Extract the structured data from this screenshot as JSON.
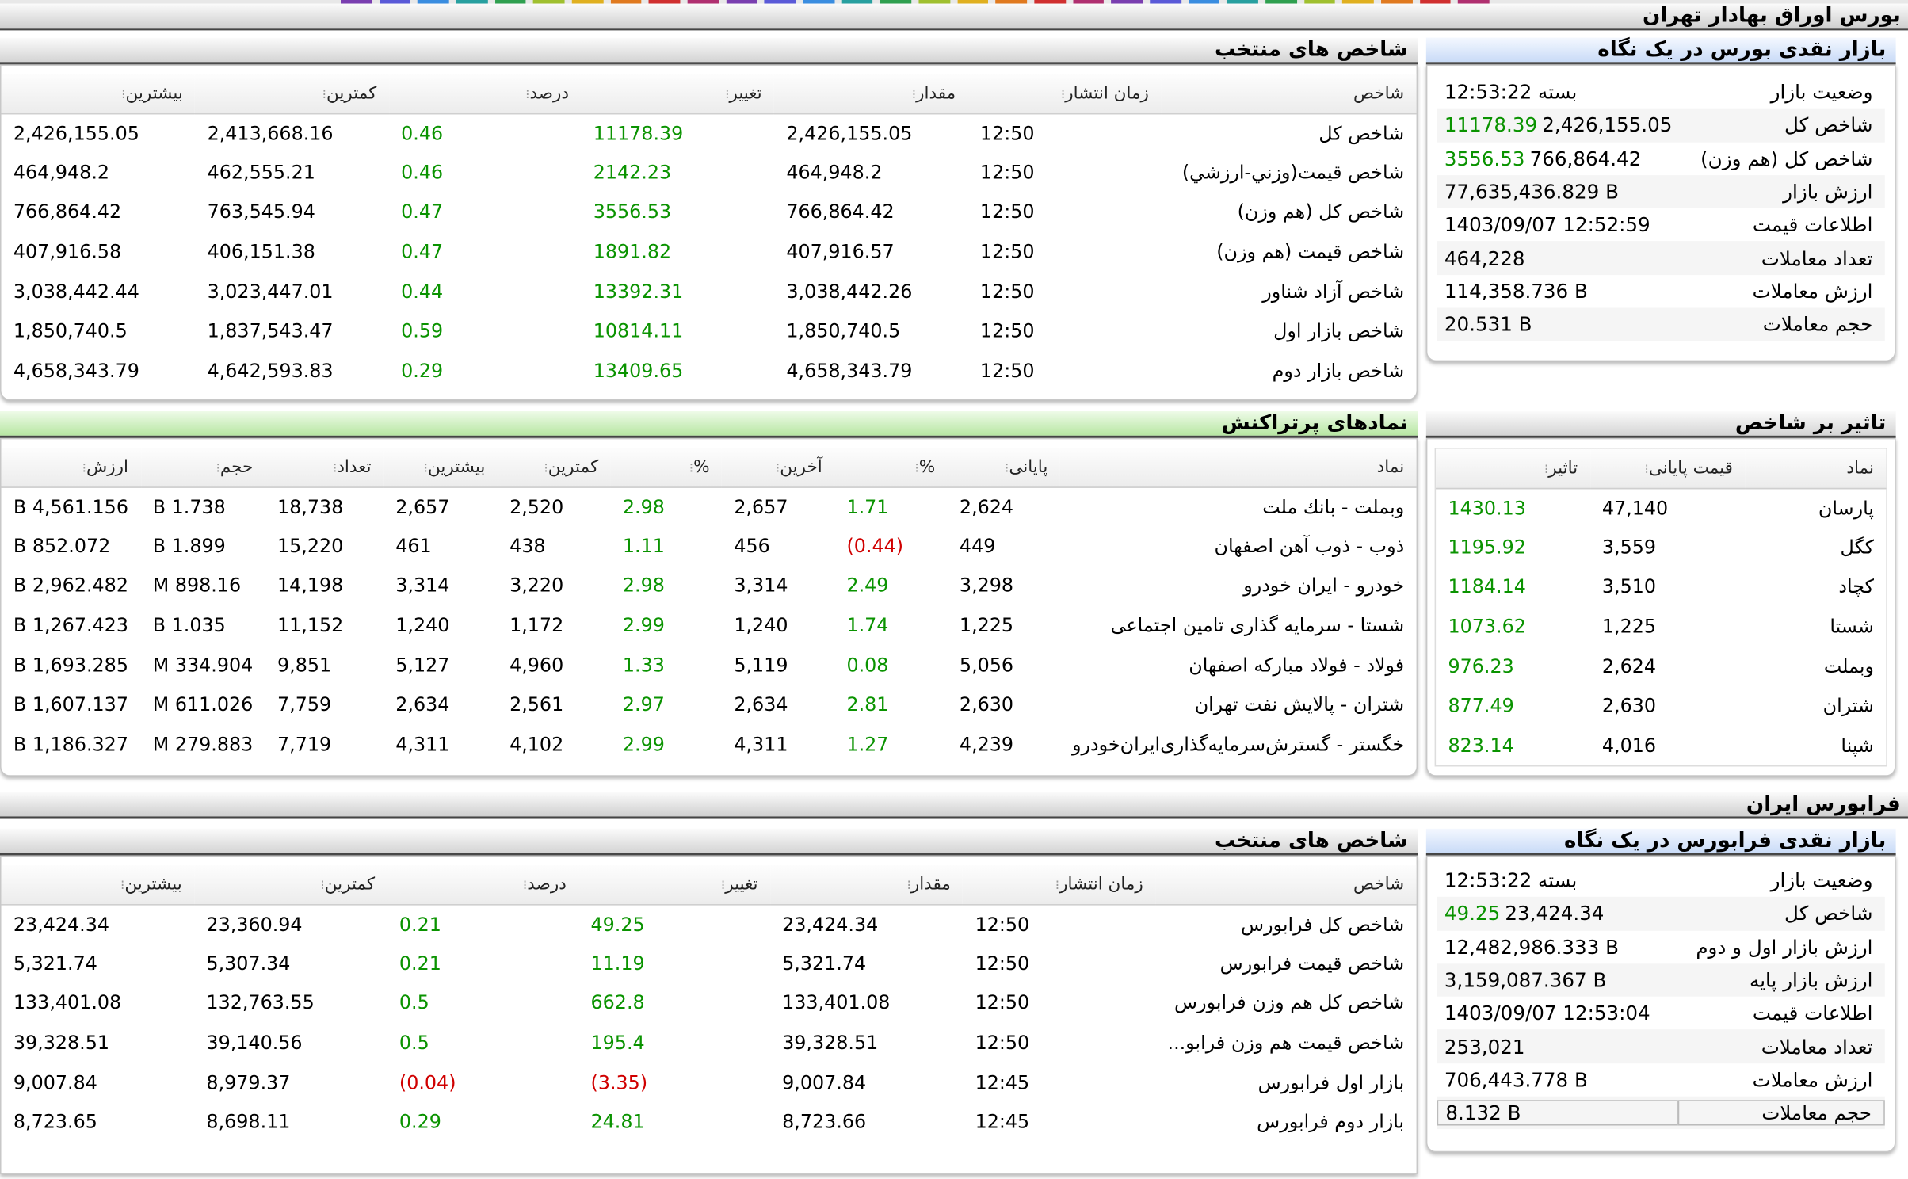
{
  "tse": {
    "title": "بورس اوراق بهادار تهران",
    "summary_title": "بازار نقدی بورس در یک نگاه",
    "summary": [
      {
        "k": "وضعیت بازار",
        "v": "بسته 12:53:22",
        "p": ""
      },
      {
        "k": "شاخص کل",
        "v": "2,426,155.05",
        "p": "11178.39"
      },
      {
        "k": "شاخص کل (هم وزن)",
        "v": "766,864.42",
        "p": "3556.53"
      },
      {
        "k": "ارزش بازار",
        "v": "77,635,436.829 B",
        "p": ""
      },
      {
        "k": "اطلاعات قیمت",
        "v": "1403/09/07 12:52:59",
        "p": ""
      },
      {
        "k": "تعداد معاملات",
        "v": "464,228",
        "p": ""
      },
      {
        "k": "ارزش معاملات",
        "v": "114,358.736 B",
        "p": ""
      },
      {
        "k": "حجم معاملات",
        "v": "20.531 B",
        "p": ""
      }
    ],
    "indices_title": "شاخص های منتخب",
    "indices_cols": [
      "شاخص",
      "زمان انتشار",
      "مقدار",
      "تغییر",
      "درصد",
      "کمترین",
      "بیشترین"
    ],
    "indices": [
      [
        "شاخص کل",
        "12:50",
        "2,426,155.05",
        "11178.39",
        "0.46",
        "2,413,668.16",
        "2,426,155.05"
      ],
      [
        "شاخص قيمت(وزني-ارزشي)",
        "12:50",
        "464,948.2",
        "2142.23",
        "0.46",
        "462,555.21",
        "464,948.2"
      ],
      [
        "شاخص کل (هم وزن)",
        "12:50",
        "766,864.42",
        "3556.53",
        "0.47",
        "763,545.94",
        "766,864.42"
      ],
      [
        "شاخص قیمت (هم وزن)",
        "12:50",
        "407,916.57",
        "1891.82",
        "0.47",
        "406,151.38",
        "407,916.58"
      ],
      [
        "شاخص آزاد شناور",
        "12:50",
        "3,038,442.26",
        "13392.31",
        "0.44",
        "3,023,447.01",
        "3,038,442.44"
      ],
      [
        "شاخص بازار اول",
        "12:50",
        "1,850,740.5",
        "10814.11",
        "0.59",
        "1,837,543.47",
        "1,850,740.5"
      ],
      [
        "شاخص بازار دوم",
        "12:50",
        "4,658,343.79",
        "13409.65",
        "0.29",
        "4,642,593.83",
        "4,658,343.79"
      ]
    ],
    "impact_title": "تاثیر بر شاخص",
    "impact_cols": [
      "نماد",
      "قیمت پایانی",
      "تاثیر"
    ],
    "impact": [
      [
        "پارسان",
        "47,140",
        "1430.13"
      ],
      [
        "کگل",
        "3,559",
        "1195.92"
      ],
      [
        "کچاد",
        "3,510",
        "1184.14"
      ],
      [
        "شستا",
        "1,225",
        "1073.62"
      ],
      [
        "وبملت",
        "2,624",
        "976.23"
      ],
      [
        "شتران",
        "2,630",
        "877.49"
      ],
      [
        "شپنا",
        "4,016",
        "823.14"
      ]
    ],
    "active_title": "نمادهای پرتراکنش",
    "active_cols": [
      "نماد",
      "پایانی",
      "%",
      "آخرین",
      "%",
      "کمترین",
      "بیشترین",
      "تعداد",
      "حجم",
      "ارزش"
    ],
    "active": [
      [
        "وبملت - بانك ملت",
        "2,624",
        "1.71",
        "2,657",
        "2.98",
        "2,520",
        "2,657",
        "18,738",
        "1.738 B",
        "4,561.156 B"
      ],
      [
        "ذوب - ذوب آهن  اصفهان",
        "449",
        "(0.44)",
        "456",
        "1.11",
        "438",
        "461",
        "15,220",
        "1.899 B",
        "852.072 B"
      ],
      [
        "خودرو - ایران‌ خودرو",
        "3,298",
        "2.49",
        "3,314",
        "2.98",
        "3,220",
        "3,314",
        "14,198",
        "898.16 M",
        "2,962.482 B"
      ],
      [
        "شستا - سرمایه گذاری تامین اجتماعی",
        "1,225",
        "1.74",
        "1,240",
        "2.99",
        "1,172",
        "1,240",
        "11,152",
        "1.035 B",
        "1,267.423 B"
      ],
      [
        "فولاد - فولاد مباركه اصفهان",
        "5,056",
        "0.08",
        "5,119",
        "1.33",
        "4,960",
        "5,127",
        "9,851",
        "334.904 M",
        "1,693.285 B"
      ],
      [
        "شتران - پالایش نفت تهران",
        "2,630",
        "2.81",
        "2,634",
        "2.97",
        "2,561",
        "2,634",
        "7,759",
        "611.026 M",
        "1,607.137 B"
      ],
      [
        "خگستر - گسترش‌سرمایه‌گذاری‌ایران‌خودرو",
        "4,239",
        "1.27",
        "4,311",
        "2.99",
        "4,102",
        "4,311",
        "7,719",
        "279.883 M",
        "1,186.327 B"
      ]
    ]
  },
  "ifb": {
    "title": "فرابورس ایران",
    "summary_title": "بازار نقدی فرابورس در یک نگاه",
    "summary": [
      {
        "k": "وضعیت بازار",
        "v": "بسته 12:53:22",
        "p": ""
      },
      {
        "k": "شاخص کل",
        "v": "23,424.34",
        "p": "49.25"
      },
      {
        "k": "ارزش بازار اول و دوم",
        "v": "12,482,986.333 B",
        "p": ""
      },
      {
        "k": "ارزش بازار پایه",
        "v": "3,159,087.367 B",
        "p": ""
      },
      {
        "k": "اطلاعات قیمت",
        "v": "1403/09/07 12:53:04",
        "p": ""
      },
      {
        "k": "تعداد معاملات",
        "v": "253,021",
        "p": ""
      },
      {
        "k": "ارزش معاملات",
        "v": "706,443.778 B",
        "p": ""
      },
      {
        "k": "حجم معاملات",
        "v": "8.132 B",
        "p": ""
      }
    ],
    "indices_title": "شاخص های منتخب",
    "indices_cols": [
      "شاخص",
      "زمان انتشار",
      "مقدار",
      "تغییر",
      "درصد",
      "کمترین",
      "بیشترین"
    ],
    "indices": [
      [
        "شاخص كل فرابورس",
        "12:50",
        "23,424.34",
        "49.25",
        "0.21",
        "23,360.94",
        "23,424.34"
      ],
      [
        "شاخص قیمت فرابورس",
        "12:50",
        "5,321.74",
        "11.19",
        "0.21",
        "5,307.34",
        "5,321.74"
      ],
      [
        "شاخص کل هم وزن فرابورس",
        "12:50",
        "133,401.08",
        "662.8",
        "0.5",
        "132,763.55",
        "133,401.08"
      ],
      [
        "شاخص قیمت هم وزن فرابو...",
        "12:50",
        "39,328.51",
        "195.4",
        "0.5",
        "39,140.56",
        "39,328.51"
      ],
      [
        "بازار اول فرابورس",
        "12:45",
        "9,007.84",
        "(3.35)",
        "(0.04)",
        "8,979.37",
        "9,007.84"
      ],
      [
        "بازار دوم فرابورس",
        "12:45",
        "8,723.66",
        "24.81",
        "0.29",
        "8,698.11",
        "8,723.65"
      ]
    ]
  },
  "colors": {
    "positive": "#0a9300",
    "negative": "#d00000"
  }
}
